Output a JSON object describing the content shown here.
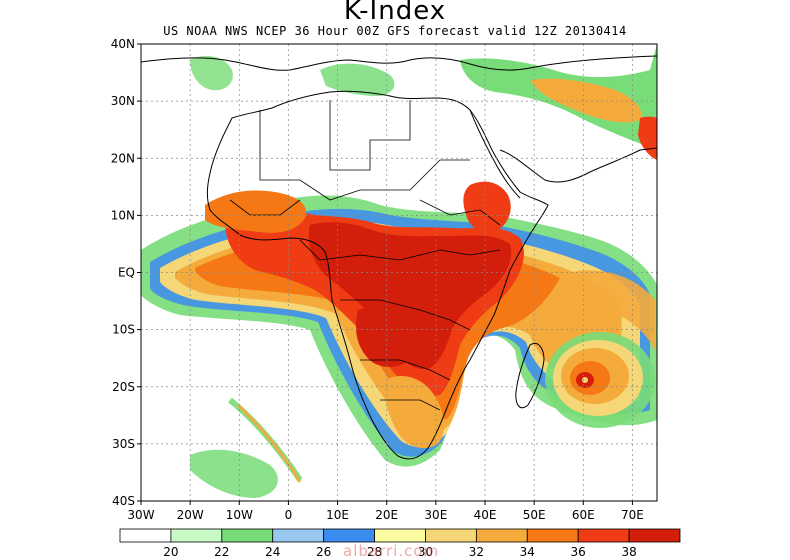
{
  "title": "K-Index",
  "subtitle": "US NOAA NWS NCEP 36 Hour 00Z GFS forecast valid 12Z 20130414",
  "watermark": "albarri.com",
  "map": {
    "lon_range": [
      -30,
      75
    ],
    "lat_range": [
      -40,
      40
    ],
    "lat_labels": [
      "40N",
      "30N",
      "20N",
      "10N",
      "EQ",
      "10S",
      "20S",
      "30S",
      "40S"
    ],
    "lat_values": [
      40,
      30,
      20,
      10,
      0,
      -10,
      -20,
      -30,
      -40
    ],
    "lon_labels": [
      "30W",
      "20W",
      "10W",
      "0",
      "10E",
      "20E",
      "30E",
      "40E",
      "50E",
      "60E",
      "70E"
    ],
    "lon_values": [
      -30,
      -20,
      -10,
      0,
      10,
      20,
      30,
      40,
      50,
      60,
      70
    ],
    "gridlines": "dotted"
  },
  "legend": {
    "labels": [
      "20",
      "22",
      "24",
      "26",
      "28",
      "30",
      "32",
      "34",
      "36",
      "38"
    ],
    "colors": [
      "#ffffff",
      "#c8fac8",
      "#78dc78",
      "#98c8f0",
      "#3c8cf0",
      "#fafaa0",
      "#f5d778",
      "#f5aa3c",
      "#f57814",
      "#f03c14",
      "#d21e0a"
    ]
  },
  "shading_colors": {
    "green_light": "#c8fac8",
    "green": "#78dc78",
    "blue": "#3c8cf0",
    "yellow": "#f5d778",
    "orange": "#f5aa3c",
    "dark_orange": "#f57814",
    "red": "#f03c14",
    "dark_red": "#d21e0a"
  }
}
